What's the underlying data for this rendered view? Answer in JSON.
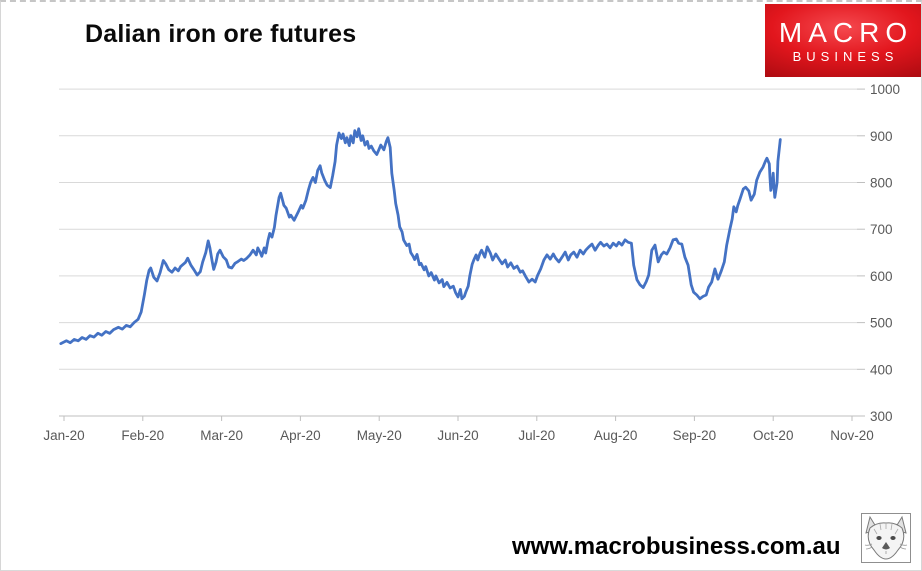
{
  "logo": {
    "line1": "MACRO",
    "line2": "BUSINESS",
    "bg_color": "#e2161d",
    "text_color": "#ffffff"
  },
  "footer": {
    "url": "www.macrobusiness.com.au"
  },
  "colors": {
    "line": "#4472c4",
    "grid": "#d9d9d9",
    "axis": "#bfbfbf",
    "axis_text": "#595959"
  },
  "chart_data": {
    "type": "line",
    "title": "Dalian iron ore futures",
    "xlabel": "",
    "ylabel": "",
    "x_unit": "months since Jan-2020 tick",
    "x_tick_labels": [
      "Jan-20",
      "Feb-20",
      "Mar-20",
      "Apr-20",
      "May-20",
      "Jun-20",
      "Jul-20",
      "Aug-20",
      "Sep-20",
      "Oct-20",
      "Nov-20"
    ],
    "y_ticks": [
      300,
      400,
      500,
      600,
      700,
      800,
      900,
      1000
    ],
    "ylim": [
      300,
      1000
    ],
    "grid": "horizontal",
    "legend": "none",
    "y_axis_side": "right",
    "series": [
      {
        "name": "Dalian iron ore futures",
        "color": "#4472c4",
        "points": [
          [
            -0.04,
            455
          ],
          [
            0.03,
            461
          ],
          [
            0.08,
            457
          ],
          [
            0.13,
            464
          ],
          [
            0.18,
            461
          ],
          [
            0.23,
            468
          ],
          [
            0.28,
            464
          ],
          [
            0.33,
            472
          ],
          [
            0.38,
            469
          ],
          [
            0.43,
            477
          ],
          [
            0.48,
            473
          ],
          [
            0.53,
            481
          ],
          [
            0.58,
            477
          ],
          [
            0.63,
            485
          ],
          [
            0.69,
            490
          ],
          [
            0.74,
            486
          ],
          [
            0.79,
            494
          ],
          [
            0.84,
            491
          ],
          [
            0.89,
            500
          ],
          [
            0.94,
            507
          ],
          [
            0.98,
            523
          ],
          [
            1.02,
            560
          ],
          [
            1.05,
            590
          ],
          [
            1.08,
            612
          ],
          [
            1.1,
            617
          ],
          [
            1.14,
            597
          ],
          [
            1.18,
            589
          ],
          [
            1.22,
            607
          ],
          [
            1.26,
            633
          ],
          [
            1.29,
            626
          ],
          [
            1.33,
            613
          ],
          [
            1.37,
            608
          ],
          [
            1.41,
            617
          ],
          [
            1.45,
            611
          ],
          [
            1.48,
            620
          ],
          [
            1.54,
            629
          ],
          [
            1.57,
            638
          ],
          [
            1.61,
            623
          ],
          [
            1.65,
            613
          ],
          [
            1.69,
            602
          ],
          [
            1.73,
            609
          ],
          [
            1.76,
            630
          ],
          [
            1.8,
            650
          ],
          [
            1.83,
            675
          ],
          [
            1.85,
            661
          ],
          [
            1.88,
            632
          ],
          [
            1.9,
            614
          ],
          [
            1.93,
            630
          ],
          [
            1.95,
            647
          ],
          [
            1.98,
            655
          ],
          [
            2.02,
            641
          ],
          [
            2.06,
            634
          ],
          [
            2.09,
            619
          ],
          [
            2.13,
            617
          ],
          [
            2.17,
            627
          ],
          [
            2.21,
            631
          ],
          [
            2.25,
            636
          ],
          [
            2.28,
            633
          ],
          [
            2.32,
            638
          ],
          [
            2.36,
            645
          ],
          [
            2.4,
            655
          ],
          [
            2.44,
            645
          ],
          [
            2.46,
            660
          ],
          [
            2.49,
            650
          ],
          [
            2.51,
            642
          ],
          [
            2.54,
            660
          ],
          [
            2.56,
            649
          ],
          [
            2.59,
            677
          ],
          [
            2.61,
            691
          ],
          [
            2.64,
            683
          ],
          [
            2.67,
            704
          ],
          [
            2.69,
            730
          ],
          [
            2.73,
            768
          ],
          [
            2.75,
            777
          ],
          [
            2.79,
            751
          ],
          [
            2.82,
            745
          ],
          [
            2.86,
            726
          ],
          [
            2.88,
            730
          ],
          [
            2.92,
            719
          ],
          [
            2.97,
            736
          ],
          [
            3.01,
            751
          ],
          [
            3.03,
            745
          ],
          [
            3.07,
            762
          ],
          [
            3.1,
            783
          ],
          [
            3.13,
            800
          ],
          [
            3.16,
            811
          ],
          [
            3.19,
            800
          ],
          [
            3.22,
            826
          ],
          [
            3.25,
            836
          ],
          [
            3.27,
            821
          ],
          [
            3.31,
            804
          ],
          [
            3.34,
            794
          ],
          [
            3.38,
            789
          ],
          [
            3.41,
            815
          ],
          [
            3.44,
            845
          ],
          [
            3.46,
            880
          ],
          [
            3.49,
            906
          ],
          [
            3.52,
            894
          ],
          [
            3.54,
            904
          ],
          [
            3.57,
            885
          ],
          [
            3.59,
            896
          ],
          [
            3.62,
            879
          ],
          [
            3.64,
            900
          ],
          [
            3.67,
            885
          ],
          [
            3.69,
            911
          ],
          [
            3.72,
            898
          ],
          [
            3.74,
            915
          ],
          [
            3.77,
            890
          ],
          [
            3.79,
            900
          ],
          [
            3.82,
            880
          ],
          [
            3.85,
            888
          ],
          [
            3.87,
            873
          ],
          [
            3.9,
            878
          ],
          [
            3.93,
            868
          ],
          [
            3.97,
            860
          ],
          [
            4.0,
            872
          ],
          [
            4.02,
            880
          ],
          [
            4.06,
            870
          ],
          [
            4.09,
            888
          ],
          [
            4.11,
            896
          ],
          [
            4.14,
            875
          ],
          [
            4.16,
            820
          ],
          [
            4.19,
            783
          ],
          [
            4.21,
            755
          ],
          [
            4.24,
            730
          ],
          [
            4.26,
            705
          ],
          [
            4.29,
            694
          ],
          [
            4.31,
            677
          ],
          [
            4.35,
            665
          ],
          [
            4.38,
            668
          ],
          [
            4.4,
            650
          ],
          [
            4.43,
            642
          ],
          [
            4.45,
            635
          ],
          [
            4.48,
            646
          ],
          [
            4.51,
            624
          ],
          [
            4.53,
            627
          ],
          [
            4.57,
            613
          ],
          [
            4.59,
            620
          ],
          [
            4.63,
            600
          ],
          [
            4.66,
            607
          ],
          [
            4.7,
            591
          ],
          [
            4.72,
            600
          ],
          [
            4.76,
            585
          ],
          [
            4.8,
            592
          ],
          [
            4.82,
            577
          ],
          [
            4.86,
            586
          ],
          [
            4.9,
            574
          ],
          [
            4.94,
            578
          ],
          [
            4.97,
            564
          ],
          [
            5.0,
            555
          ],
          [
            5.03,
            571
          ],
          [
            5.05,
            551
          ],
          [
            5.08,
            556
          ],
          [
            5.1,
            566
          ],
          [
            5.13,
            578
          ],
          [
            5.15,
            600
          ],
          [
            5.18,
            625
          ],
          [
            5.2,
            634
          ],
          [
            5.23,
            645
          ],
          [
            5.25,
            634
          ],
          [
            5.28,
            649
          ],
          [
            5.3,
            655
          ],
          [
            5.34,
            640
          ],
          [
            5.37,
            662
          ],
          [
            5.41,
            649
          ],
          [
            5.44,
            634
          ],
          [
            5.48,
            647
          ],
          [
            5.52,
            636
          ],
          [
            5.56,
            626
          ],
          [
            5.6,
            634
          ],
          [
            5.63,
            619
          ],
          [
            5.67,
            628
          ],
          [
            5.71,
            616
          ],
          [
            5.75,
            621
          ],
          [
            5.79,
            608
          ],
          [
            5.82,
            611
          ],
          [
            5.86,
            598
          ],
          [
            5.9,
            587
          ],
          [
            5.94,
            593
          ],
          [
            5.98,
            587
          ],
          [
            6.01,
            601
          ],
          [
            6.05,
            615
          ],
          [
            6.09,
            634
          ],
          [
            6.13,
            645
          ],
          [
            6.17,
            636
          ],
          [
            6.21,
            647
          ],
          [
            6.24,
            638
          ],
          [
            6.28,
            630
          ],
          [
            6.32,
            640
          ],
          [
            6.36,
            651
          ],
          [
            6.4,
            634
          ],
          [
            6.43,
            645
          ],
          [
            6.47,
            651
          ],
          [
            6.51,
            640
          ],
          [
            6.55,
            655
          ],
          [
            6.59,
            647
          ],
          [
            6.62,
            655
          ],
          [
            6.66,
            662
          ],
          [
            6.7,
            668
          ],
          [
            6.74,
            655
          ],
          [
            6.78,
            666
          ],
          [
            6.81,
            672
          ],
          [
            6.85,
            664
          ],
          [
            6.89,
            668
          ],
          [
            6.93,
            660
          ],
          [
            6.97,
            670
          ],
          [
            7.01,
            664
          ],
          [
            7.04,
            672
          ],
          [
            7.08,
            666
          ],
          [
            7.12,
            677
          ],
          [
            7.16,
            672
          ],
          [
            7.2,
            670
          ],
          [
            7.23,
            623
          ],
          [
            7.27,
            592
          ],
          [
            7.31,
            581
          ],
          [
            7.35,
            575
          ],
          [
            7.39,
            588
          ],
          [
            7.42,
            602
          ],
          [
            7.46,
            655
          ],
          [
            7.5,
            666
          ],
          [
            7.54,
            630
          ],
          [
            7.58,
            645
          ],
          [
            7.61,
            651
          ],
          [
            7.65,
            647
          ],
          [
            7.69,
            660
          ],
          [
            7.73,
            677
          ],
          [
            7.77,
            679
          ],
          [
            7.8,
            670
          ],
          [
            7.84,
            668
          ],
          [
            7.88,
            640
          ],
          [
            7.92,
            623
          ],
          [
            7.96,
            581
          ],
          [
            7.99,
            565
          ],
          [
            8.03,
            559
          ],
          [
            8.07,
            551
          ],
          [
            8.11,
            556
          ],
          [
            8.15,
            559
          ],
          [
            8.18,
            576
          ],
          [
            8.22,
            587
          ],
          [
            8.26,
            615
          ],
          [
            8.3,
            593
          ],
          [
            8.34,
            610
          ],
          [
            8.38,
            630
          ],
          [
            8.41,
            666
          ],
          [
            8.45,
            700
          ],
          [
            8.48,
            722
          ],
          [
            8.5,
            748
          ],
          [
            8.53,
            737
          ],
          [
            8.55,
            750
          ],
          [
            8.58,
            765
          ],
          [
            8.62,
            786
          ],
          [
            8.65,
            790
          ],
          [
            8.69,
            782
          ],
          [
            8.72,
            762
          ],
          [
            8.76,
            775
          ],
          [
            8.79,
            805
          ],
          [
            8.83,
            822
          ],
          [
            8.87,
            833
          ],
          [
            8.9,
            845
          ],
          [
            8.92,
            852
          ],
          [
            8.95,
            840
          ],
          [
            8.96,
            810
          ],
          [
            8.97,
            783
          ],
          [
            8.99,
            800
          ],
          [
            9.0,
            820
          ],
          [
            9.01,
            790
          ],
          [
            9.02,
            768
          ],
          [
            9.05,
            800
          ],
          [
            9.06,
            845
          ],
          [
            9.09,
            892
          ]
        ]
      }
    ]
  }
}
